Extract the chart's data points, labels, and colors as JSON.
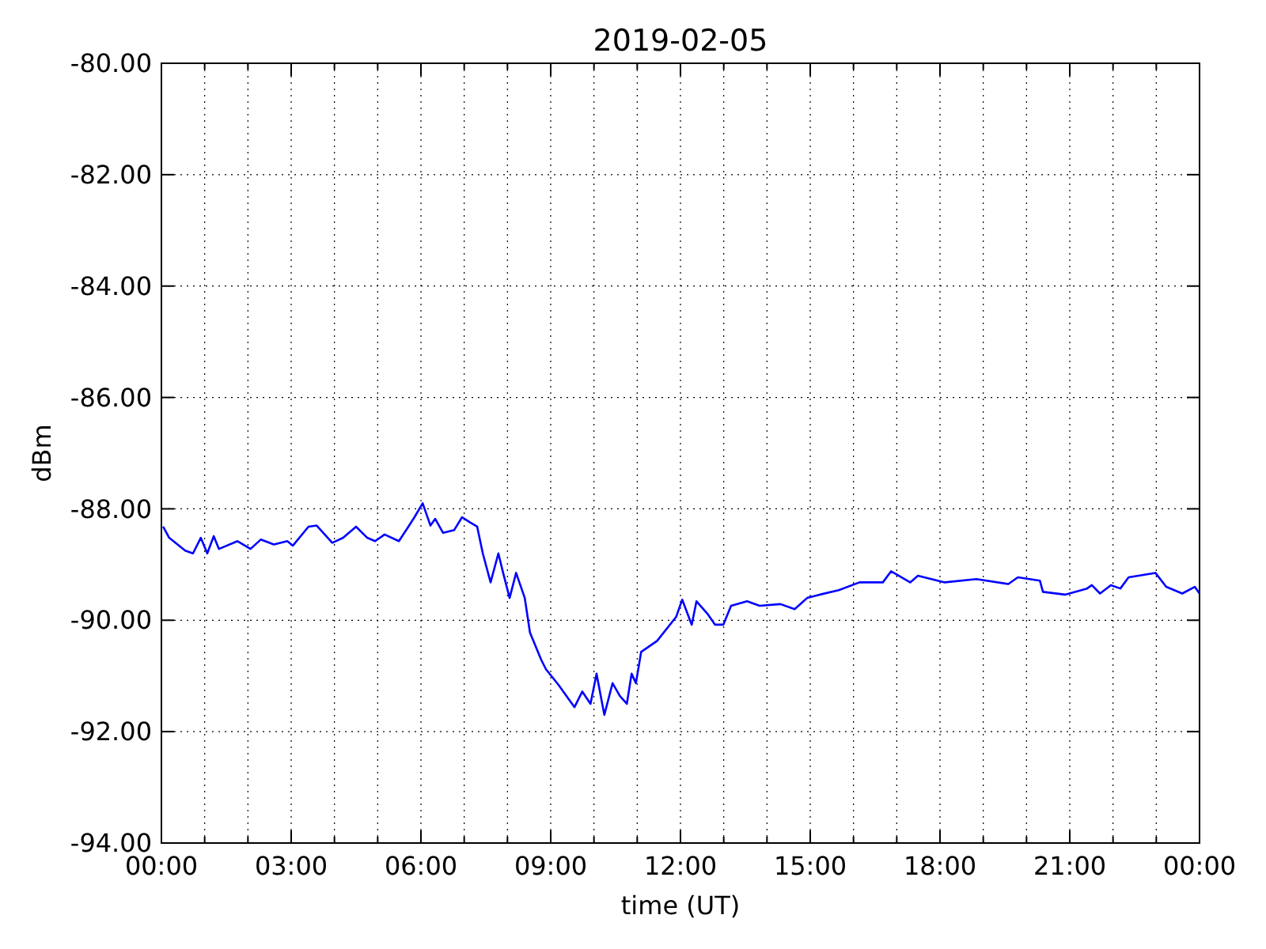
{
  "chart_data": {
    "type": "line",
    "title": "2019-02-05",
    "xlabel": "time (UT)",
    "ylabel": "dBm",
    "xlim": [
      0,
      24
    ],
    "ylim": [
      -94,
      -80
    ],
    "grid": true,
    "line_style": "solid",
    "xticks": [
      {
        "value": 0,
        "label": "00:00"
      },
      {
        "value": 1,
        "label": null
      },
      {
        "value": 2,
        "label": null
      },
      {
        "value": 3,
        "label": "03:00"
      },
      {
        "value": 4,
        "label": null
      },
      {
        "value": 5,
        "label": null
      },
      {
        "value": 6,
        "label": "06:00"
      },
      {
        "value": 7,
        "label": null
      },
      {
        "value": 8,
        "label": null
      },
      {
        "value": 9,
        "label": "09:00"
      },
      {
        "value": 10,
        "label": null
      },
      {
        "value": 11,
        "label": null
      },
      {
        "value": 12,
        "label": "12:00"
      },
      {
        "value": 13,
        "label": null
      },
      {
        "value": 14,
        "label": null
      },
      {
        "value": 15,
        "label": "15:00"
      },
      {
        "value": 16,
        "label": null
      },
      {
        "value": 17,
        "label": null
      },
      {
        "value": 18,
        "label": "18:00"
      },
      {
        "value": 19,
        "label": null
      },
      {
        "value": 20,
        "label": null
      },
      {
        "value": 21,
        "label": "21:00"
      },
      {
        "value": 22,
        "label": null
      },
      {
        "value": 23,
        "label": null
      },
      {
        "value": 24,
        "label": "00:00"
      }
    ],
    "yticks": [
      {
        "value": -94,
        "label": "-94.00"
      },
      {
        "value": -92,
        "label": "-92.00"
      },
      {
        "value": -90,
        "label": "-90.00"
      },
      {
        "value": -88,
        "label": "-88.00"
      },
      {
        "value": -86,
        "label": "-86.00"
      },
      {
        "value": -84,
        "label": "-84.00"
      },
      {
        "value": -82,
        "label": "-82.00"
      },
      {
        "value": -80,
        "label": "-80.00"
      }
    ],
    "series": [
      {
        "color": "#0000ff",
        "x": [
          0.04,
          0.18,
          0.55,
          0.73,
          0.91,
          1.06,
          1.21,
          1.33,
          1.76,
          2.06,
          2.3,
          2.6,
          2.91,
          3.04,
          3.4,
          3.59,
          3.95,
          4.2,
          4.5,
          4.76,
          4.94,
          5.16,
          5.49,
          5.71,
          5.85,
          6.04,
          6.22,
          6.33,
          6.51,
          6.77,
          6.95,
          7.13,
          7.3,
          7.43,
          7.61,
          7.79,
          7.9,
          8.05,
          8.2,
          8.4,
          8.52,
          8.78,
          8.89,
          9.18,
          9.55,
          9.73,
          9.92,
          10.06,
          10.24,
          10.43,
          10.6,
          10.76,
          10.87,
          10.97,
          11.09,
          11.46,
          11.9,
          12.04,
          12.26,
          12.37,
          12.62,
          12.8,
          12.99,
          13.17,
          13.54,
          13.83,
          14.31,
          14.64,
          14.93,
          15.22,
          15.66,
          16.14,
          16.68,
          16.87,
          17.31,
          17.49,
          18.11,
          18.84,
          19.58,
          19.8,
          20.31,
          20.38,
          20.89,
          21.4,
          21.51,
          21.7,
          21.95,
          22.17,
          22.36,
          22.98,
          23.23,
          23.6,
          23.89,
          24.0
        ],
        "values": [
          -88.32,
          -88.52,
          -88.75,
          -88.8,
          -88.52,
          -88.8,
          -88.49,
          -88.72,
          -88.58,
          -88.72,
          -88.55,
          -88.64,
          -88.58,
          -88.66,
          -88.32,
          -88.3,
          -88.61,
          -88.52,
          -88.32,
          -88.52,
          -88.58,
          -88.46,
          -88.58,
          -88.32,
          -88.15,
          -87.9,
          -88.3,
          -88.18,
          -88.43,
          -88.38,
          -88.15,
          -88.24,
          -88.32,
          -88.8,
          -89.32,
          -88.8,
          -89.15,
          -89.6,
          -89.15,
          -89.6,
          -90.22,
          -90.71,
          -90.88,
          -91.16,
          -91.56,
          -91.28,
          -91.5,
          -90.96,
          -91.7,
          -91.13,
          -91.36,
          -91.5,
          -90.96,
          -91.13,
          -90.57,
          -90.37,
          -89.94,
          -89.63,
          -90.08,
          -89.66,
          -89.88,
          -90.08,
          -90.08,
          -89.74,
          -89.66,
          -89.74,
          -89.71,
          -89.8,
          -89.6,
          -89.54,
          -89.46,
          -89.32,
          -89.32,
          -89.12,
          -89.32,
          -89.2,
          -89.32,
          -89.26,
          -89.35,
          -89.23,
          -89.29,
          -89.49,
          -89.54,
          -89.43,
          -89.37,
          -89.52,
          -89.37,
          -89.43,
          -89.23,
          -89.15,
          -89.4,
          -89.52,
          -89.4,
          -89.52
        ]
      }
    ]
  }
}
